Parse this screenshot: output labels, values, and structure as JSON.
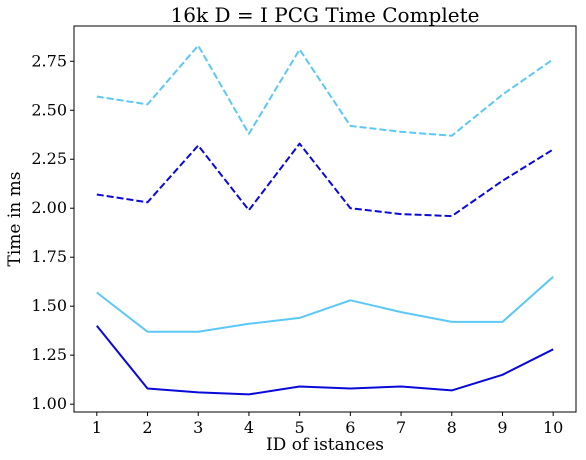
{
  "chart_data": {
    "type": "line",
    "title": "16k    D = I    PCG Time    Complete",
    "xlabel": "ID of istances",
    "ylabel": "Time in ms",
    "x": [
      1,
      2,
      3,
      4,
      5,
      6,
      7,
      8,
      9,
      10
    ],
    "x_ticks": [
      "1",
      "2",
      "3",
      "4",
      "5",
      "6",
      "7",
      "8",
      "9",
      "10"
    ],
    "y_ticks": [
      "1.00",
      "1.25",
      "1.50",
      "1.75",
      "2.00",
      "2.25",
      "2.50",
      "2.75"
    ],
    "y_tick_values": [
      1.0,
      1.25,
      1.5,
      1.75,
      2.0,
      2.25,
      2.5,
      2.75
    ],
    "xlim": [
      0.55,
      10.45
    ],
    "ylim": [
      0.96,
      2.93
    ],
    "grid": false,
    "series": [
      {
        "color": "#5bc8f5",
        "style": "dashed",
        "values": [
          2.57,
          2.53,
          2.83,
          2.38,
          2.81,
          2.42,
          2.39,
          2.37,
          2.58,
          2.76
        ]
      },
      {
        "color": "#0a0ad8",
        "style": "dashed",
        "values": [
          2.07,
          2.03,
          2.32,
          1.99,
          2.33,
          2.0,
          1.97,
          1.96,
          2.14,
          2.3
        ]
      },
      {
        "color": "#5bc8f5",
        "style": "solid",
        "values": [
          1.57,
          1.37,
          1.37,
          1.41,
          1.44,
          1.53,
          1.47,
          1.42,
          1.42,
          1.65
        ]
      },
      {
        "color": "#0a0ad8",
        "style": "solid",
        "values": [
          1.4,
          1.08,
          1.06,
          1.05,
          1.09,
          1.08,
          1.09,
          1.07,
          1.15,
          1.28
        ]
      }
    ]
  }
}
